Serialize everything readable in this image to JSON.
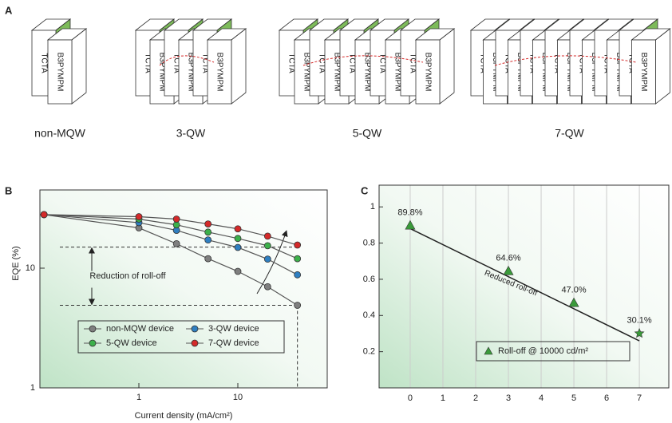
{
  "panel_labels": [
    "A",
    "B",
    "C"
  ],
  "diagram": {
    "groups": [
      "non-MQW",
      "3-QW",
      "5-QW",
      "7-QW"
    ],
    "layers": [
      "TCTA",
      "B3PYMPM"
    ]
  },
  "chart_data": [
    {
      "type": "line",
      "xscale": "log",
      "yscale": "log",
      "x_label": "Current density (mA/cm²)",
      "y_label": "EQE (%)",
      "annotation": "Reduction of roll-off",
      "x": [
        0.11,
        1,
        2.4,
        5,
        10,
        20,
        40
      ],
      "xlim": [
        0.1,
        80
      ],
      "ylim": [
        1,
        45
      ],
      "xticks": [
        1,
        10
      ],
      "yticks": [
        1,
        10
      ],
      "reference_lines": {
        "y": [
          15,
          4.9
        ],
        "x": 40
      },
      "series": [
        {
          "name": "non-MQW device",
          "color": "#7f7f7f",
          "values": [
            28,
            21.7,
            16,
            12,
            9.4,
            7,
            4.9
          ]
        },
        {
          "name": "3-QW device",
          "color": "#2f7fc1",
          "values": [
            28,
            24,
            20.7,
            17.2,
            14.9,
            11.9,
            8.8
          ]
        },
        {
          "name": "5-QW device",
          "color": "#3cb04a",
          "values": [
            28,
            25.7,
            23,
            20,
            17.7,
            15.4,
            12
          ]
        },
        {
          "name": "7-QW device",
          "color": "#d42a2a",
          "values": [
            28,
            26.9,
            25.7,
            23.4,
            21.3,
            18.5,
            15.6
          ]
        }
      ]
    },
    {
      "type": "scatter",
      "annotation": "Reduced roll-off",
      "grid": true,
      "xlim": [
        -0.95,
        7.9
      ],
      "ylim": [
        0,
        1.12
      ],
      "xticks": [
        0,
        1,
        2,
        3,
        4,
        5,
        6,
        7
      ],
      "yticks": [
        0.2,
        0.4,
        0.6,
        0.8,
        1.0
      ],
      "series": [
        {
          "name": "Roll-off @ 10000 cd/m²",
          "color": "#3a9a3a",
          "x": [
            0,
            3,
            5,
            7
          ],
          "values": [
            0.898,
            0.646,
            0.47,
            0.301
          ],
          "value_labels": [
            "89.8%",
            "64.6%",
            "47.0%",
            "30.1%"
          ],
          "markers": [
            "triangle",
            "triangle",
            "triangle",
            "star"
          ]
        }
      ],
      "trend_line": {
        "x": [
          0,
          7
        ],
        "values": [
          0.88,
          0.26
        ]
      }
    }
  ]
}
